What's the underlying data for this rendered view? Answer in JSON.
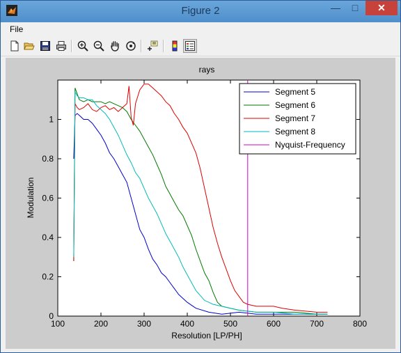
{
  "window": {
    "title": "Figure 2"
  },
  "menu": {
    "file": "File"
  },
  "toolbar": [
    "new-figure-icon",
    "open-file-icon",
    "save-icon",
    "print-icon",
    "zoom-in-icon",
    "zoom-out-icon",
    "pan-hand-icon",
    "rotate-3d-icon",
    "data-cursor-icon",
    "colorbar-icon",
    "legend-icon"
  ],
  "chart_data": {
    "type": "line",
    "title": "rays",
    "xlabel": "Resolution [LP/PH]",
    "ylabel": "Modulation",
    "xlim": [
      100,
      800
    ],
    "ylim": [
      0,
      1.2
    ],
    "xticks": [
      "100",
      "200",
      "300",
      "400",
      "500",
      "600",
      "700",
      "800"
    ],
    "yticks": [
      "0",
      "0.2",
      "0.4",
      "0.6",
      "0.8",
      "1"
    ],
    "legend_position": "top-right",
    "series": [
      {
        "name": "Segment 5",
        "color": "#0000cc",
        "x": [
          137,
          140,
          145,
          150,
          160,
          170,
          180,
          190,
          200,
          210,
          220,
          230,
          240,
          250,
          260,
          270,
          280,
          290,
          300,
          310,
          320,
          330,
          340,
          350,
          360,
          370,
          380,
          390,
          400,
          420,
          450,
          480,
          520,
          560,
          600,
          650,
          700,
          725
        ],
        "y": [
          0.8,
          1.02,
          1.03,
          1.02,
          1.0,
          1.0,
          0.98,
          0.95,
          0.92,
          0.88,
          0.83,
          0.8,
          0.76,
          0.72,
          0.68,
          0.6,
          0.52,
          0.44,
          0.4,
          0.34,
          0.29,
          0.26,
          0.22,
          0.2,
          0.17,
          0.14,
          0.11,
          0.09,
          0.07,
          0.04,
          0.02,
          0.01,
          0.02,
          0.01,
          0.01,
          0.01,
          0.01,
          0.01
        ]
      },
      {
        "name": "Segment 6",
        "color": "#007a00",
        "x": [
          137,
          140,
          145,
          150,
          160,
          170,
          180,
          190,
          200,
          210,
          220,
          230,
          240,
          250,
          260,
          270,
          280,
          290,
          300,
          310,
          320,
          330,
          340,
          350,
          360,
          370,
          380,
          390,
          400,
          410,
          420,
          430,
          440,
          450,
          460,
          470,
          480,
          500,
          520,
          560,
          600,
          650,
          700,
          725
        ],
        "y": [
          0.28,
          1.16,
          1.13,
          1.1,
          1.09,
          1.1,
          1.09,
          1.09,
          1.09,
          1.08,
          1.09,
          1.08,
          1.07,
          1.06,
          1.04,
          1.0,
          0.97,
          0.94,
          0.9,
          0.86,
          0.82,
          0.77,
          0.72,
          0.66,
          0.62,
          0.58,
          0.54,
          0.51,
          0.46,
          0.41,
          0.34,
          0.28,
          0.22,
          0.18,
          0.12,
          0.07,
          0.05,
          0.04,
          0.03,
          0.02,
          0.02,
          0.02,
          0.01,
          0.01
        ]
      },
      {
        "name": "Segment 7",
        "color": "#dd0000",
        "x": [
          137,
          140,
          145,
          150,
          160,
          170,
          180,
          190,
          200,
          210,
          220,
          230,
          240,
          250,
          260,
          265,
          270,
          275,
          280,
          290,
          300,
          310,
          320,
          330,
          340,
          350,
          360,
          370,
          380,
          390,
          400,
          410,
          420,
          430,
          440,
          450,
          460,
          470,
          480,
          490,
          500,
          510,
          520,
          530,
          540,
          560,
          580,
          600,
          620,
          650,
          700,
          725
        ],
        "y": [
          0.28,
          1.08,
          1.06,
          1.05,
          1.06,
          1.08,
          1.05,
          1.04,
          1.06,
          1.07,
          1.05,
          1.06,
          1.04,
          1.06,
          1.08,
          1.17,
          1.01,
          0.97,
          1.08,
          1.15,
          1.18,
          1.18,
          1.16,
          1.14,
          1.12,
          1.09,
          1.07,
          1.03,
          1.0,
          0.96,
          0.93,
          0.88,
          0.83,
          0.75,
          0.65,
          0.55,
          0.45,
          0.37,
          0.3,
          0.24,
          0.18,
          0.13,
          0.1,
          0.07,
          0.06,
          0.05,
          0.05,
          0.05,
          0.04,
          0.03,
          0.02,
          0.02
        ]
      },
      {
        "name": "Segment 8",
        "color": "#00bbbb",
        "x": [
          137,
          140,
          145,
          150,
          160,
          170,
          180,
          190,
          200,
          210,
          220,
          230,
          240,
          250,
          260,
          270,
          280,
          290,
          300,
          310,
          320,
          330,
          340,
          350,
          360,
          370,
          380,
          390,
          400,
          410,
          420,
          440,
          460,
          480,
          500,
          520,
          560,
          600,
          650,
          700,
          725
        ],
        "y": [
          0.3,
          1.14,
          1.12,
          1.11,
          1.11,
          1.1,
          1.1,
          1.07,
          1.05,
          1.03,
          1.0,
          0.96,
          0.92,
          0.87,
          0.82,
          0.78,
          0.73,
          0.7,
          0.65,
          0.6,
          0.56,
          0.52,
          0.47,
          0.42,
          0.38,
          0.34,
          0.3,
          0.25,
          0.21,
          0.17,
          0.13,
          0.08,
          0.06,
          0.05,
          0.04,
          0.03,
          0.02,
          0.02,
          0.01,
          0.01,
          0.01
        ]
      },
      {
        "name": "Nyquist-Frequency",
        "color": "#cc00cc",
        "x": [
          540,
          540
        ],
        "y": [
          0,
          1.2
        ]
      }
    ]
  }
}
